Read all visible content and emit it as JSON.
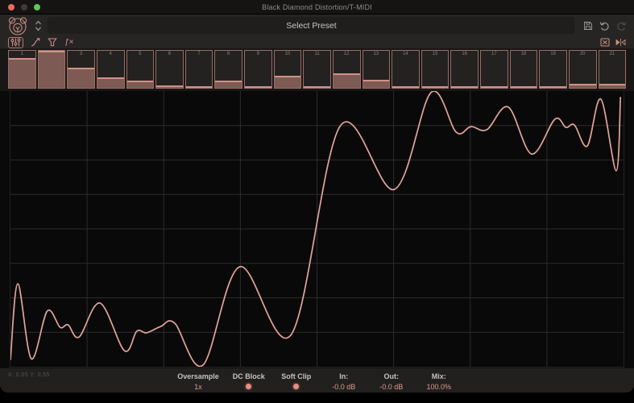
{
  "window": {
    "title": "Black Diamond Distortion/T-MIDI"
  },
  "header": {
    "preset_label": "Select Preset"
  },
  "icons": {
    "logo": "bear-emblem",
    "preset_chevrons": "up-down-chevrons",
    "save": "floppy-disk",
    "undo": "undo-arrow",
    "redo": "redo-arrow",
    "tool_harmonics": "faders",
    "tool_curve": "response-curve",
    "tool_clip": "funnel",
    "tool_fx": "ƒ×",
    "tool_random": "randomize-box",
    "tool_mirror": "mirror-triangles"
  },
  "harmonics": {
    "items": [
      {
        "label": "1",
        "value": 0.8
      },
      {
        "label": "2",
        "value": 1.0
      },
      {
        "label": "3",
        "value": 0.55
      },
      {
        "label": "4",
        "value": 0.28
      },
      {
        "label": "5",
        "value": 0.2
      },
      {
        "label": "6",
        "value": 0.07
      },
      {
        "label": "7",
        "value": 0.05
      },
      {
        "label": "8",
        "value": 0.2
      },
      {
        "label": "9",
        "value": 0.05
      },
      {
        "label": "10",
        "value": 0.33
      },
      {
        "label": "11",
        "value": 0.05
      },
      {
        "label": "12",
        "value": 0.4
      },
      {
        "label": "13",
        "value": 0.22
      },
      {
        "label": "14",
        "value": 0.05
      },
      {
        "label": "15",
        "value": 0.04
      },
      {
        "label": "16",
        "value": 0.04
      },
      {
        "label": "17",
        "value": 0.04
      },
      {
        "label": "18",
        "value": 0.05
      },
      {
        "label": "19",
        "value": 0.05
      },
      {
        "label": "20",
        "value": 0.11
      },
      {
        "label": "21",
        "value": 0.11
      }
    ]
  },
  "display": {
    "coord_readout": "X: 0.05  Y: 0.55",
    "grid": {
      "cols": 8,
      "rows": 8,
      "line_color": "#2c2b2a"
    },
    "waveform": {
      "color": "#e2a59b",
      "points": [
        [
          0,
          97.4
        ],
        [
          1.2,
          69.9
        ],
        [
          3.4,
          97.1
        ],
        [
          6.0,
          79.8
        ],
        [
          8.1,
          85.7
        ],
        [
          9.4,
          84.8
        ],
        [
          11.2,
          89.2
        ],
        [
          14.6,
          76.9
        ],
        [
          18.6,
          94.2
        ],
        [
          20.6,
          87.1
        ],
        [
          22.2,
          87.7
        ],
        [
          24.5,
          85.4
        ],
        [
          26.8,
          84.2
        ],
        [
          31.4,
          99.4
        ],
        [
          37.4,
          63.7
        ],
        [
          45.8,
          88.3
        ],
        [
          53.8,
          12.6
        ],
        [
          62.6,
          35.7
        ],
        [
          68.6,
          0.5
        ],
        [
          72.7,
          14.9
        ],
        [
          75.1,
          12.9
        ],
        [
          77.7,
          14.0
        ],
        [
          81.2,
          5.8
        ],
        [
          85.0,
          22.8
        ],
        [
          88.8,
          10.2
        ],
        [
          90.6,
          13.2
        ],
        [
          92.0,
          12.3
        ],
        [
          94.1,
          19.9
        ],
        [
          96.3,
          2.9
        ],
        [
          98.8,
          28.9
        ],
        [
          99.5,
          2.3
        ]
      ]
    }
  },
  "footer": {
    "groups": [
      {
        "label": "Oversample",
        "value": "1x",
        "type": "text"
      },
      {
        "label": "DC Block",
        "type": "dot"
      },
      {
        "label": "Soft Clip",
        "type": "dot"
      },
      {
        "label": "In:",
        "value": "-0.0 dB",
        "type": "text"
      },
      {
        "label": "Out:",
        "value": "-0.0 dB",
        "type": "text"
      },
      {
        "label": "Mix:",
        "value": "100.0%",
        "type": "text"
      }
    ]
  },
  "colors": {
    "accent": "#d4948a",
    "harmonic_fill": "#7d5a54",
    "toggle_on": "#ec8d7d",
    "background": "#0b0a0a"
  }
}
